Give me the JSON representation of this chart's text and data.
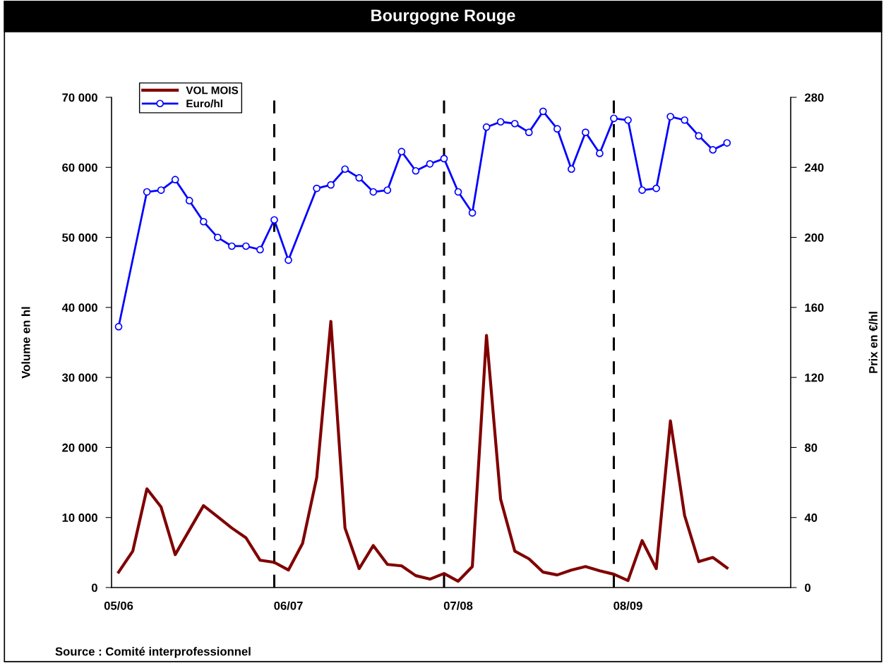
{
  "chart_data": {
    "type": "line",
    "title": "Bourgogne Rouge",
    "ylabel": "Volume en hl",
    "y2label": "Prix en €/hl",
    "categories": [
      "05/06",
      null,
      null,
      null,
      null,
      null,
      null,
      null,
      null,
      null,
      null,
      null,
      "06/07",
      null,
      null,
      null,
      null,
      null,
      null,
      null,
      null,
      null,
      null,
      null,
      "07/08",
      null,
      null,
      null,
      null,
      null,
      null,
      null,
      null,
      null,
      null,
      null,
      "08/09",
      null,
      null,
      null,
      null,
      null,
      null,
      null,
      null,
      null,
      null,
      null
    ],
    "ylim": [
      0,
      70000
    ],
    "yticks": [
      {
        "value": 0,
        "label": "0"
      },
      {
        "value": 10000,
        "label": "10 000"
      },
      {
        "value": 20000,
        "label": "20 000"
      },
      {
        "value": 30000,
        "label": "30 000"
      },
      {
        "value": 40000,
        "label": "40 000"
      },
      {
        "value": 50000,
        "label": "50 000"
      },
      {
        "value": 60000,
        "label": "60 000"
      },
      {
        "value": 70000,
        "label": "70 000"
      }
    ],
    "y2lim": [
      0,
      280
    ],
    "y2ticks": [
      0,
      40,
      80,
      120,
      160,
      200,
      240,
      280
    ],
    "series": [
      {
        "name": "VOL MOIS",
        "color": "#800000",
        "marker": "none",
        "values": [
          2200,
          5200,
          14100,
          11500,
          4700,
          8200,
          11700,
          10100,
          8500,
          7100,
          3900,
          3600,
          2500,
          6300,
          15700,
          38000,
          8500,
          2700,
          6000,
          3300,
          3100,
          1700,
          1200,
          2000,
          900,
          3000,
          36000,
          12600,
          5200,
          4100,
          2200,
          1800,
          2500,
          3000,
          2400,
          1900,
          1000,
          6700,
          2700,
          23800,
          10300,
          3700,
          4300,
          2800,
          null,
          null,
          null,
          null
        ]
      },
      {
        "name": "Euro/hl",
        "color": "#0000ff",
        "axis": "y2",
        "marker": "circle",
        "values": [
          149,
          null,
          226,
          227,
          233,
          221,
          209,
          200,
          195,
          195,
          193,
          210,
          187,
          null,
          228,
          230,
          239,
          234,
          226,
          227,
          249,
          238,
          242,
          245,
          226,
          214,
          263,
          266,
          265,
          260,
          272,
          262,
          239,
          260,
          248,
          268,
          267,
          227,
          228,
          269,
          267,
          258,
          250,
          254,
          null,
          null,
          null,
          null
        ]
      }
    ],
    "legend": "top left",
    "grid": "x",
    "annotations": [
      "Source : Comité interprofessionnel"
    ]
  }
}
